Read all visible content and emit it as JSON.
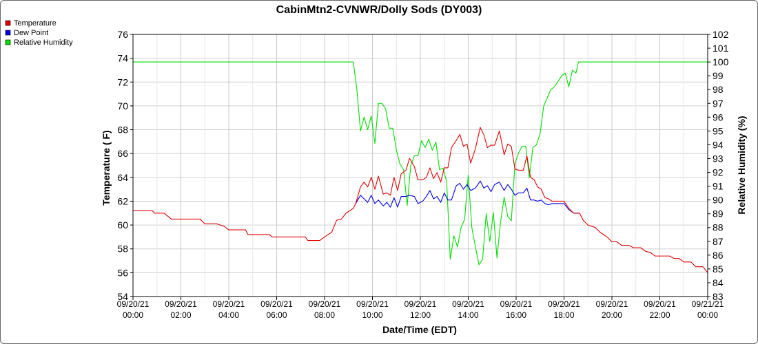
{
  "chart_data": {
    "type": "line",
    "title": "CabinMtn2-CVNWR/Dolly Sods (DY003)",
    "xlabel": "Date/Time (EDT)",
    "ylabel": "Temperature ( F)",
    "y2label": "Relative Humidity (%)",
    "ylim": [
      54,
      76
    ],
    "y2lim": [
      83,
      102
    ],
    "xlim_hours": [
      0,
      24
    ],
    "yticks": [
      54,
      56,
      58,
      60,
      62,
      64,
      66,
      68,
      70,
      72,
      74,
      76
    ],
    "y2ticks": [
      83,
      84,
      85,
      86,
      87,
      88,
      89,
      90,
      91,
      92,
      93,
      94,
      95,
      96,
      97,
      98,
      99,
      100,
      101,
      102
    ],
    "xticks": [
      {
        "h": 0,
        "line1": "09/20/21",
        "line2": "00:00"
      },
      {
        "h": 2,
        "line1": "09/20/21",
        "line2": "02:00"
      },
      {
        "h": 4,
        "line1": "09/20/21",
        "line2": "04:00"
      },
      {
        "h": 6,
        "line1": "09/20/21",
        "line2": "06:00"
      },
      {
        "h": 8,
        "line1": "09/20/21",
        "line2": "08:00"
      },
      {
        "h": 10,
        "line1": "09/20/21",
        "line2": "10:00"
      },
      {
        "h": 12,
        "line1": "09/20/21",
        "line2": "12:00"
      },
      {
        "h": 14,
        "line1": "09/20/21",
        "line2": "14:00"
      },
      {
        "h": 16,
        "line1": "09/20/21",
        "line2": "16:00"
      },
      {
        "h": 18,
        "line1": "09/20/21",
        "line2": "18:00"
      },
      {
        "h": 20,
        "line1": "09/20/21",
        "line2": "20:00"
      },
      {
        "h": 22,
        "line1": "09/20/21",
        "line2": "22:00"
      },
      {
        "h": 24,
        "line1": "09/21/21",
        "line2": "00:00"
      }
    ],
    "grid": true,
    "legend_position": "top-left",
    "series": [
      {
        "name": "Temperature",
        "color": "#e00000",
        "axis": "left",
        "points": [
          [
            0,
            61.2
          ],
          [
            0.8,
            61.2
          ],
          [
            0.9,
            61.0
          ],
          [
            1.3,
            61.0
          ],
          [
            1.6,
            60.5
          ],
          [
            2.8,
            60.5
          ],
          [
            3.0,
            60.1
          ],
          [
            3.5,
            60.1
          ],
          [
            3.8,
            59.9
          ],
          [
            4.0,
            59.6
          ],
          [
            4.7,
            59.6
          ],
          [
            4.8,
            59.2
          ],
          [
            5.7,
            59.2
          ],
          [
            5.8,
            59.0
          ],
          [
            7.2,
            59.0
          ],
          [
            7.3,
            58.7
          ],
          [
            7.8,
            58.7
          ],
          [
            8.0,
            59.0
          ],
          [
            8.3,
            59.4
          ],
          [
            8.5,
            60.4
          ],
          [
            8.7,
            60.5
          ],
          [
            8.9,
            61.0
          ],
          [
            9.2,
            61.4
          ],
          [
            9.3,
            61.8
          ],
          [
            9.5,
            63.2
          ],
          [
            9.65,
            63.6
          ],
          [
            9.8,
            63.2
          ],
          [
            9.95,
            64.0
          ],
          [
            10.1,
            63.0
          ],
          [
            10.25,
            64.1
          ],
          [
            10.45,
            62.6
          ],
          [
            10.6,
            62.7
          ],
          [
            10.75,
            62.5
          ],
          [
            10.9,
            64.0
          ],
          [
            11.05,
            62.9
          ],
          [
            11.2,
            64.3
          ],
          [
            11.4,
            64.6
          ],
          [
            11.55,
            65.6
          ],
          [
            11.75,
            64.9
          ],
          [
            11.9,
            63.8
          ],
          [
            12.1,
            63.8
          ],
          [
            12.25,
            64.0
          ],
          [
            12.4,
            64.8
          ],
          [
            12.55,
            63.9
          ],
          [
            12.7,
            64.4
          ],
          [
            12.85,
            63.6
          ],
          [
            13.0,
            64.8
          ],
          [
            13.15,
            64.8
          ],
          [
            13.3,
            66.5
          ],
          [
            13.5,
            67.1
          ],
          [
            13.65,
            67.6
          ],
          [
            13.8,
            66.6
          ],
          [
            13.95,
            66.8
          ],
          [
            14.1,
            65.2
          ],
          [
            14.3,
            66.4
          ],
          [
            14.5,
            68.2
          ],
          [
            14.65,
            67.6
          ],
          [
            14.8,
            66.5
          ],
          [
            14.95,
            66.7
          ],
          [
            15.1,
            66.7
          ],
          [
            15.3,
            67.9
          ],
          [
            15.5,
            65.9
          ],
          [
            15.65,
            66.8
          ],
          [
            15.8,
            66.6
          ],
          [
            15.95,
            64.7
          ],
          [
            16.1,
            64.6
          ],
          [
            16.3,
            64.6
          ],
          [
            16.45,
            65.8
          ],
          [
            16.6,
            64.0
          ],
          [
            16.75,
            63.8
          ],
          [
            16.9,
            63.2
          ],
          [
            17.05,
            63.0
          ],
          [
            17.2,
            62.3
          ],
          [
            17.35,
            62.2
          ],
          [
            17.5,
            62.0
          ],
          [
            18.0,
            62.0
          ],
          [
            18.2,
            61.4
          ],
          [
            18.4,
            61.0
          ],
          [
            18.65,
            61.0
          ],
          [
            18.8,
            60.4
          ],
          [
            19.0,
            60.0
          ],
          [
            19.3,
            59.8
          ],
          [
            19.5,
            59.4
          ],
          [
            19.8,
            59.0
          ],
          [
            20.0,
            58.6
          ],
          [
            20.2,
            58.6
          ],
          [
            20.4,
            58.3
          ],
          [
            20.7,
            58.3
          ],
          [
            20.9,
            58.1
          ],
          [
            21.2,
            58.1
          ],
          [
            21.4,
            57.8
          ],
          [
            21.6,
            57.7
          ],
          [
            21.8,
            57.4
          ],
          [
            22.4,
            57.4
          ],
          [
            22.6,
            57.2
          ],
          [
            22.8,
            57.2
          ],
          [
            23.0,
            56.9
          ],
          [
            23.3,
            56.9
          ],
          [
            23.5,
            56.5
          ],
          [
            23.8,
            56.5
          ],
          [
            24.0,
            56.0
          ]
        ]
      },
      {
        "name": "Dew Point",
        "color": "#0000e0",
        "axis": "left",
        "points": [
          [
            9.3,
            61.8
          ],
          [
            9.5,
            62.5
          ],
          [
            9.65,
            62.2
          ],
          [
            9.8,
            61.9
          ],
          [
            9.95,
            62.5
          ],
          [
            10.1,
            61.8
          ],
          [
            10.25,
            62.1
          ],
          [
            10.45,
            61.6
          ],
          [
            10.6,
            61.9
          ],
          [
            10.75,
            61.5
          ],
          [
            10.9,
            62.3
          ],
          [
            11.05,
            61.5
          ],
          [
            11.2,
            62.4
          ],
          [
            11.4,
            62.4
          ],
          [
            11.55,
            62.5
          ],
          [
            11.75,
            62.4
          ],
          [
            11.9,
            61.8
          ],
          [
            12.1,
            62.0
          ],
          [
            12.25,
            62.4
          ],
          [
            12.4,
            62.9
          ],
          [
            12.55,
            62.2
          ],
          [
            12.7,
            62.4
          ],
          [
            12.85,
            61.9
          ],
          [
            13.0,
            62.7
          ],
          [
            13.15,
            62.1
          ],
          [
            13.3,
            62.1
          ],
          [
            13.5,
            63.3
          ],
          [
            13.65,
            63.5
          ],
          [
            13.8,
            63.0
          ],
          [
            13.95,
            63.4
          ],
          [
            14.1,
            62.9
          ],
          [
            14.3,
            63.1
          ],
          [
            14.5,
            63.7
          ],
          [
            14.65,
            63.1
          ],
          [
            14.8,
            63.3
          ],
          [
            14.95,
            62.8
          ],
          [
            15.1,
            63.4
          ],
          [
            15.3,
            63.6
          ],
          [
            15.5,
            62.9
          ],
          [
            15.65,
            63.4
          ],
          [
            15.8,
            63.0
          ],
          [
            15.95,
            62.5
          ],
          [
            16.1,
            62.7
          ],
          [
            16.3,
            62.7
          ],
          [
            16.45,
            63.1
          ],
          [
            16.6,
            62.1
          ],
          [
            16.75,
            62.1
          ],
          [
            16.9,
            62.0
          ],
          [
            17.05,
            62.1
          ],
          [
            17.2,
            61.8
          ],
          [
            17.35,
            61.7
          ],
          [
            17.5,
            61.8
          ],
          [
            18.0,
            61.8
          ],
          [
            18.2,
            61.3
          ],
          [
            18.4,
            61.0
          ],
          [
            18.65,
            61.0
          ]
        ]
      },
      {
        "name": "Relative Humidity",
        "color": "#00dd00",
        "axis": "right",
        "points": [
          [
            0,
            100
          ],
          [
            9.2,
            100
          ],
          [
            9.35,
            98
          ],
          [
            9.5,
            95
          ],
          [
            9.65,
            96
          ],
          [
            9.8,
            95.1
          ],
          [
            9.95,
            96.1
          ],
          [
            10.1,
            94.1
          ],
          [
            10.25,
            97
          ],
          [
            10.4,
            97
          ],
          [
            10.55,
            96.6
          ],
          [
            10.7,
            95.2
          ],
          [
            10.85,
            95.2
          ],
          [
            11.0,
            93.6
          ],
          [
            11.15,
            92.6
          ],
          [
            11.3,
            92.2
          ],
          [
            11.45,
            89.6
          ],
          [
            11.6,
            92.5
          ],
          [
            11.75,
            93.2
          ],
          [
            11.9,
            93.2
          ],
          [
            12.05,
            94.3
          ],
          [
            12.2,
            93.8
          ],
          [
            12.35,
            94.4
          ],
          [
            12.5,
            93.6
          ],
          [
            12.65,
            94.2
          ],
          [
            12.8,
            92.2
          ],
          [
            12.95,
            92.3
          ],
          [
            13.1,
            91.3
          ],
          [
            13.25,
            85.7
          ],
          [
            13.4,
            87.4
          ],
          [
            13.55,
            86.6
          ],
          [
            13.7,
            88.0
          ],
          [
            13.85,
            88.6
          ],
          [
            14.0,
            91.8
          ],
          [
            14.15,
            88.0
          ],
          [
            14.3,
            86.6
          ],
          [
            14.45,
            85.3
          ],
          [
            14.6,
            85.7
          ],
          [
            14.75,
            89.0
          ],
          [
            14.9,
            87.0
          ],
          [
            15.05,
            89.1
          ],
          [
            15.2,
            85.8
          ],
          [
            15.35,
            88.4
          ],
          [
            15.5,
            90.2
          ],
          [
            15.65,
            88.8
          ],
          [
            15.8,
            88.5
          ],
          [
            15.95,
            92.6
          ],
          [
            16.1,
            93.4
          ],
          [
            16.25,
            93.9
          ],
          [
            16.4,
            93.9
          ],
          [
            16.55,
            91.6
          ],
          [
            16.7,
            93.8
          ],
          [
            16.85,
            94.0
          ],
          [
            17.0,
            94.8
          ],
          [
            17.15,
            96.8
          ],
          [
            17.3,
            97.4
          ],
          [
            17.45,
            98.0
          ],
          [
            17.6,
            98.2
          ],
          [
            17.75,
            98.6
          ],
          [
            17.9,
            99.0
          ],
          [
            18.05,
            99.2
          ],
          [
            18.2,
            98.2
          ],
          [
            18.35,
            99.4
          ],
          [
            18.5,
            99.2
          ],
          [
            18.6,
            100
          ],
          [
            24.0,
            100
          ]
        ]
      }
    ]
  }
}
